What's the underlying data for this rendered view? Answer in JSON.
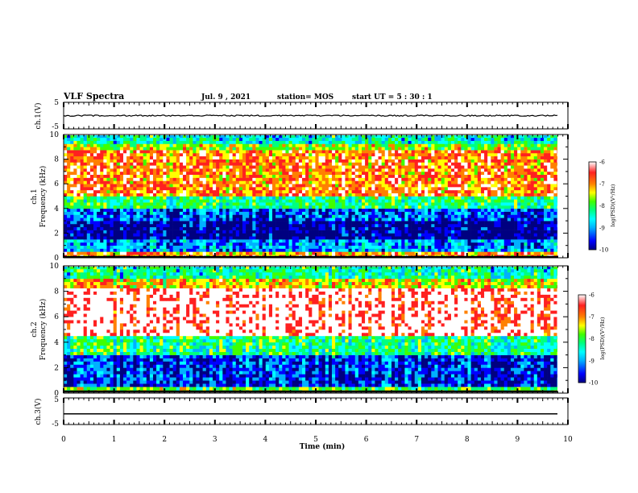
{
  "header": {
    "title": "VLF Spectra",
    "date": "Jul. 9 , 2021",
    "station": "station= MOS",
    "start": "start UT =  5 : 30 : 1"
  },
  "colors": {
    "colormap": [
      "#000080",
      "#0000ff",
      "#00b0ff",
      "#00ffff",
      "#00ff80",
      "#40ff00",
      "#ffff00",
      "#ff8000",
      "#ff2020",
      "#ffffff"
    ],
    "trace": "#000000"
  },
  "chart_data": [
    {
      "id": "ch1-waveform",
      "type": "line",
      "ylabel": "ch.1(V)",
      "ylim": [
        -5,
        5
      ],
      "yticks": [
        "5",
        "-5"
      ],
      "xlim": [
        0,
        10
      ],
      "level": 0
    },
    {
      "id": "ch1-spectrogram",
      "type": "heatmap",
      "ylabel_top": "ch.1",
      "ylabel": "Frequency (kHz)",
      "ylim": [
        0,
        10
      ],
      "yticks": [
        "0",
        "2",
        "4",
        "6",
        "8",
        "10"
      ],
      "xlim": [
        0,
        9.85
      ],
      "color_scale": {
        "label": "log(PSD)(V²/Hz)",
        "range": [
          -10,
          -6
        ],
        "ticks": [
          "-6",
          "-7",
          "-8",
          "-9",
          "-10"
        ]
      },
      "bands": [
        {
          "from_khz": 0,
          "to_khz": 0.5,
          "level": -7.0
        },
        {
          "from_khz": 0.5,
          "to_khz": 1.5,
          "level": -9.0
        },
        {
          "from_khz": 1.5,
          "to_khz": 3.0,
          "level": -9.8
        },
        {
          "from_khz": 3.0,
          "to_khz": 4.0,
          "level": -9.3
        },
        {
          "from_khz": 4.0,
          "to_khz": 5.0,
          "level": -8.2
        },
        {
          "from_khz": 5.0,
          "to_khz": 8.8,
          "level": -6.9
        },
        {
          "from_khz": 8.8,
          "to_khz": 9.3,
          "level": -7.6
        },
        {
          "from_khz": 9.3,
          "to_khz": 10,
          "level": -8.5
        }
      ]
    },
    {
      "id": "ch2-spectrogram",
      "type": "heatmap",
      "ylabel_top": "ch.2",
      "ylabel": "Frequency (kHz)",
      "ylim": [
        0,
        10
      ],
      "yticks": [
        "0",
        "2",
        "4",
        "6",
        "8",
        "10"
      ],
      "xlim": [
        0,
        9.85
      ],
      "color_scale": {
        "label": "log(PSD)(V²/Hz)",
        "range": [
          -10,
          -6
        ],
        "ticks": [
          "-6",
          "-7",
          "-8",
          "-9",
          "-10"
        ]
      },
      "bands": [
        {
          "from_khz": 0,
          "to_khz": 0.5,
          "level": -7.8
        },
        {
          "from_khz": 0.5,
          "to_khz": 3.0,
          "level": -9.4
        },
        {
          "from_khz": 3.0,
          "to_khz": 4.5,
          "level": -8.2
        },
        {
          "from_khz": 4.5,
          "to_khz": 8.3,
          "level": -6.2
        },
        {
          "from_khz": 8.3,
          "to_khz": 9.0,
          "level": -7.3
        },
        {
          "from_khz": 9.0,
          "to_khz": 10,
          "level": -8.3
        }
      ]
    },
    {
      "id": "ch3-waveform",
      "type": "line",
      "ylabel": "ch.3(V)",
      "ylim": [
        -5,
        5
      ],
      "yticks": [
        "5",
        "-5"
      ],
      "xlim": [
        0,
        10
      ],
      "level": -1,
      "xlabel": "Time (min)",
      "xticks": [
        "0",
        "1",
        "2",
        "3",
        "4",
        "5",
        "6",
        "7",
        "8",
        "9",
        "10"
      ]
    }
  ]
}
